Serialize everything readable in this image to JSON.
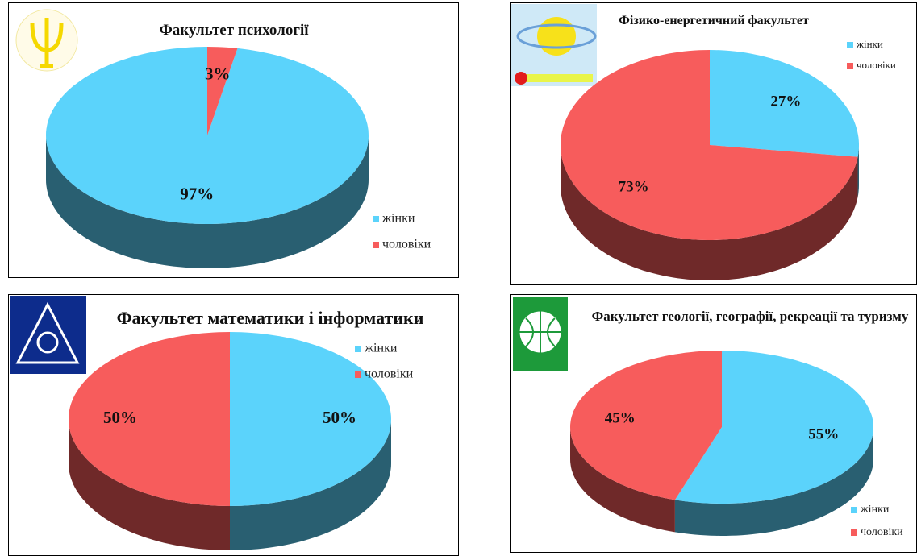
{
  "chart_data": [
    {
      "type": "pie",
      "title": "Факультет психології",
      "categories": [
        "жінки",
        "чоловіки"
      ],
      "values": [
        97,
        3
      ],
      "value_labels": [
        "97%",
        "3%"
      ],
      "colors": [
        "#5bd3fb",
        "#f75c5c"
      ],
      "start_angle": 10.8,
      "legend": "lower right"
    },
    {
      "type": "pie",
      "title": "Фізико-енергетичний факультет",
      "categories": [
        "жінки",
        "чоловіки"
      ],
      "values": [
        27,
        73
      ],
      "value_labels": [
        "27%",
        "73%"
      ],
      "colors": [
        "#5bd3fb",
        "#f75c5c"
      ],
      "start_angle": 0,
      "legend": "upper right"
    },
    {
      "type": "pie",
      "title": "Факультет математики і інформатики",
      "categories": [
        "жінки",
        "чоловіки"
      ],
      "values": [
        50,
        50
      ],
      "value_labels": [
        "50%",
        "50%"
      ],
      "colors": [
        "#5bd3fb",
        "#f75c5c"
      ],
      "start_angle": 0,
      "legend": "upper right"
    },
    {
      "type": "pie",
      "title": "Факультет геології, географії, рекреації та туризму",
      "categories": [
        "жінки",
        "чоловіки"
      ],
      "values": [
        55,
        45
      ],
      "value_labels": [
        "55%",
        "45%"
      ],
      "colors": [
        "#5bd3fb",
        "#f75c5c"
      ],
      "start_angle": 0,
      "legend": "lower right"
    }
  ]
}
